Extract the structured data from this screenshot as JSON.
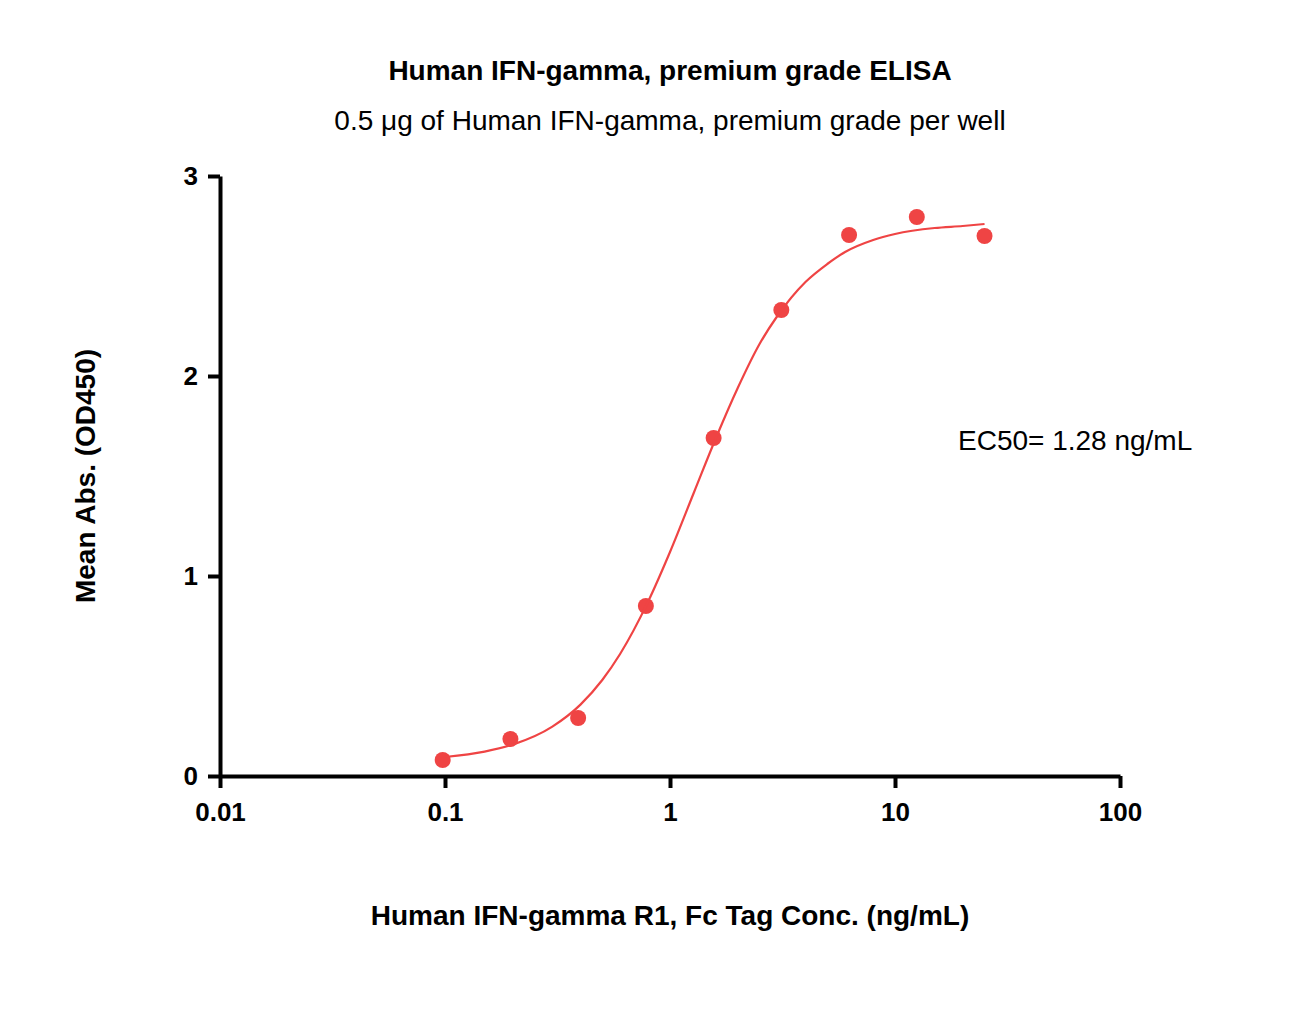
{
  "chart_data": {
    "type": "scatter",
    "title": "Human IFN-gamma, premium grade ELISA",
    "subtitle": "0.5 μg of Human IFN-gamma, premium grade per well",
    "x_label": "Human IFN-gamma R1, Fc Tag Conc. (ng/mL)",
    "y_label": "Mean Abs. (OD450)",
    "annotations": [
      "EC50= 1.28 ng/mL"
    ],
    "log": "x",
    "grid": false,
    "xlim": [
      0.01,
      100
    ],
    "xticks": [
      0.01,
      0.1,
      1,
      10,
      100
    ],
    "ylim": [
      0,
      3
    ],
    "yticks": [
      0,
      1,
      2,
      3
    ],
    "series": [
      {
        "type": "scatter",
        "marker": "circle",
        "color": "#ef4444",
        "x": [
          0.09765625,
          0.1953125,
          0.390625,
          0.78125,
          1.5625,
          3.125,
          6.25,
          12.5,
          25
        ],
        "values": [
          0.08,
          0.185,
          0.29,
          0.85,
          1.69,
          2.33,
          2.705,
          2.795,
          2.7
        ]
      },
      {
        "type": "line",
        "line_style": "solid",
        "color": "#ef4444",
        "x": [
          0.1,
          0.15,
          0.2,
          0.3,
          0.4,
          0.5,
          0.6,
          0.8,
          1,
          1.28,
          1.6,
          2,
          2.5,
          3,
          4,
          5,
          6,
          8,
          10,
          15,
          20,
          25
        ],
        "values": [
          0.095,
          0.122,
          0.157,
          0.247,
          0.357,
          0.48,
          0.61,
          0.873,
          1.12,
          1.42,
          1.69,
          1.94,
          2.16,
          2.3,
          2.47,
          2.56,
          2.62,
          2.68,
          2.71,
          2.74,
          2.75,
          2.76
        ]
      }
    ]
  }
}
